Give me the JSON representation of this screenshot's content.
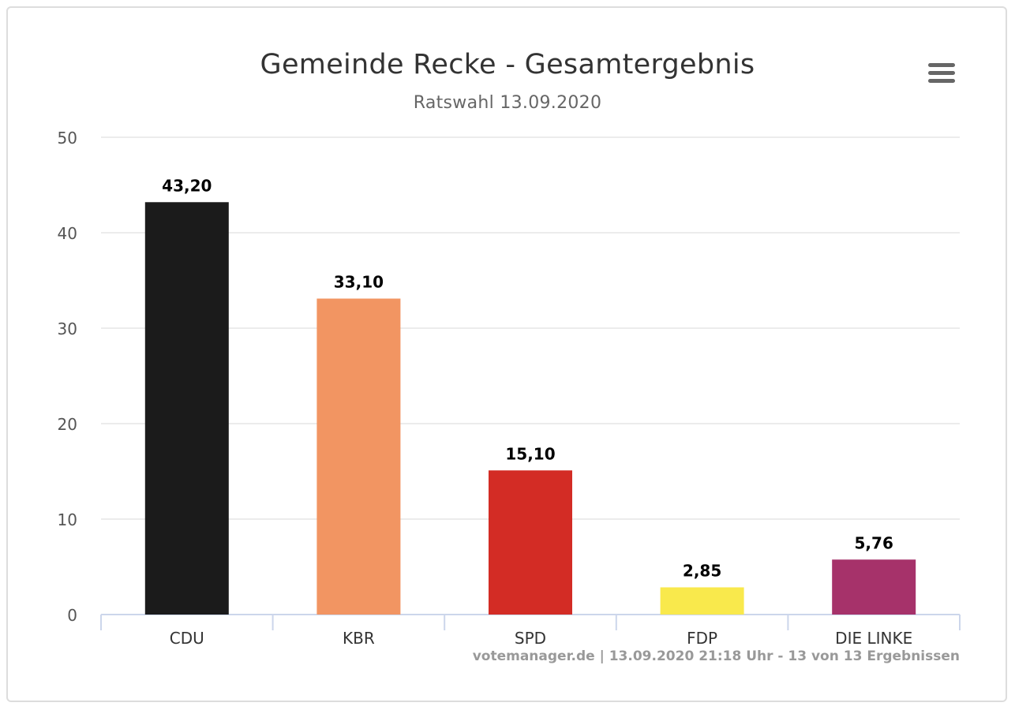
{
  "chart_data": {
    "type": "bar",
    "title": "Gemeinde Recke - Gesamtergebnis",
    "subtitle": "Ratswahl 13.09.2020",
    "categories": [
      "CDU",
      "KBR",
      "SPD",
      "FDP",
      "DIE LINKE"
    ],
    "values": [
      43.2,
      33.1,
      15.1,
      2.85,
      5.76
    ],
    "data_labels": [
      "43,20",
      "33,10",
      "15,10",
      "2,85",
      "5,76"
    ],
    "colors": [
      "#1b1b1b",
      "#f29562",
      "#d32c25",
      "#f9e94c",
      "#a6326a"
    ],
    "ylim": [
      0,
      50
    ],
    "yticks": [
      0,
      10,
      20,
      30,
      40,
      50
    ],
    "xlabel": "",
    "ylabel": "",
    "grid": true,
    "legend": "none"
  },
  "credits": "votemanager.de | 13.09.2020 21:18 Uhr - 13 von 13 Ergebnissen",
  "menu_icon": "hamburger-menu-icon"
}
